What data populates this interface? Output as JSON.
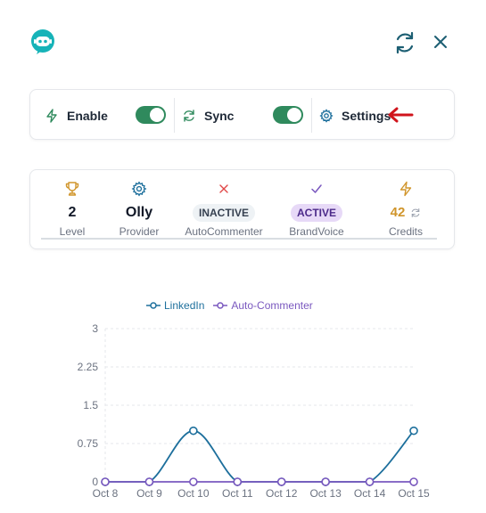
{
  "header": {
    "logo_icon": "robot-face-icon",
    "refresh_icon": "refresh-icon",
    "close_icon": "close-icon"
  },
  "controls": {
    "enable": {
      "label": "Enable",
      "icon": "lightning-icon",
      "on": true
    },
    "sync": {
      "label": "Sync",
      "icon": "refresh-icon",
      "on": true
    },
    "settings": {
      "label": "Settings",
      "icon": "gear-icon"
    }
  },
  "stats": {
    "level": {
      "value": "2",
      "label": "Level",
      "icon": "trophy-icon"
    },
    "provider": {
      "value": "Olly",
      "label": "Provider",
      "icon": "gear-icon"
    },
    "autocommenter": {
      "value": "INACTIVE",
      "label": "AutoCommenter",
      "icon": "x-icon"
    },
    "brandvoice": {
      "value": "ACTIVE",
      "label": "BrandVoice",
      "icon": "check-icon"
    },
    "credits": {
      "value": "42",
      "label": "Credits",
      "icon": "lightning-icon"
    }
  },
  "colors": {
    "accent_green": "#2f8a5d",
    "linkedin_series": "#1d6f9c",
    "autocommenter_series": "#7a58bf",
    "credits_gold": "#d0952b",
    "arrow_red": "#d0141c"
  },
  "chart_data": {
    "type": "line",
    "categories": [
      "Oct 8",
      "Oct 9",
      "Oct 10",
      "Oct 11",
      "Oct 12",
      "Oct 13",
      "Oct 14",
      "Oct 15"
    ],
    "series": [
      {
        "name": "LinkedIn",
        "values": [
          0,
          0,
          1,
          0,
          0,
          0,
          0,
          1
        ]
      },
      {
        "name": "Auto-Commenter",
        "values": [
          0,
          0,
          0,
          0,
          0,
          0,
          0,
          0
        ]
      }
    ],
    "y_ticks": [
      "0",
      "0.75",
      "1.5",
      "2.25",
      "3"
    ],
    "ylim": [
      0,
      3
    ],
    "grid": true,
    "legend": "top-center"
  }
}
